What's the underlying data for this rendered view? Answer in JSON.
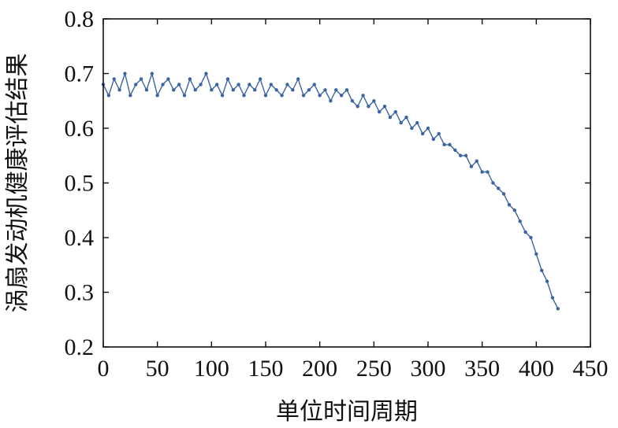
{
  "chart_data": {
    "type": "line",
    "title": "",
    "xlabel": "单位时间周期",
    "ylabel": "涡扇发动机健康评估结果",
    "xlim": [
      0,
      450
    ],
    "ylim": [
      0.2,
      0.8
    ],
    "xticks": [
      "0",
      "50",
      "100",
      "150",
      "200",
      "250",
      "300",
      "350",
      "400",
      "450"
    ],
    "yticks": [
      "0.2",
      "0.3",
      "0.4",
      "0.5",
      "0.6",
      "0.7",
      "0.8"
    ],
    "grid": false,
    "legend": "none",
    "color": "#3b64a4",
    "series": [
      {
        "markers": true,
        "x": [
          0,
          5,
          10,
          15,
          20,
          25,
          30,
          35,
          40,
          45,
          50,
          55,
          60,
          65,
          70,
          75,
          80,
          85,
          90,
          95,
          100,
          105,
          110,
          115,
          120,
          125,
          130,
          135,
          140,
          145,
          150,
          155,
          160,
          165,
          170,
          175,
          180,
          185,
          190,
          195,
          200,
          205,
          210,
          215,
          220,
          225,
          230,
          235,
          240,
          245,
          250,
          255,
          260,
          265,
          270,
          275,
          280,
          285,
          290,
          295,
          300,
          305,
          310,
          315,
          320,
          325,
          330,
          335,
          340,
          345,
          350,
          355,
          360,
          365,
          370,
          375,
          380,
          385,
          390,
          395,
          400,
          405,
          410,
          415,
          420
        ],
        "y": [
          0.68,
          0.66,
          0.69,
          0.67,
          0.7,
          0.66,
          0.68,
          0.69,
          0.67,
          0.7,
          0.66,
          0.68,
          0.69,
          0.67,
          0.68,
          0.66,
          0.69,
          0.67,
          0.68,
          0.7,
          0.67,
          0.68,
          0.66,
          0.69,
          0.67,
          0.68,
          0.66,
          0.68,
          0.67,
          0.69,
          0.66,
          0.68,
          0.67,
          0.66,
          0.68,
          0.67,
          0.69,
          0.66,
          0.67,
          0.68,
          0.66,
          0.67,
          0.65,
          0.67,
          0.66,
          0.67,
          0.65,
          0.64,
          0.66,
          0.64,
          0.65,
          0.63,
          0.64,
          0.62,
          0.63,
          0.61,
          0.62,
          0.6,
          0.61,
          0.59,
          0.6,
          0.58,
          0.59,
          0.57,
          0.57,
          0.56,
          0.55,
          0.55,
          0.53,
          0.54,
          0.52,
          0.52,
          0.5,
          0.49,
          0.48,
          0.46,
          0.45,
          0.43,
          0.41,
          0.4,
          0.37,
          0.34,
          0.32,
          0.29,
          0.27
        ]
      }
    ]
  }
}
